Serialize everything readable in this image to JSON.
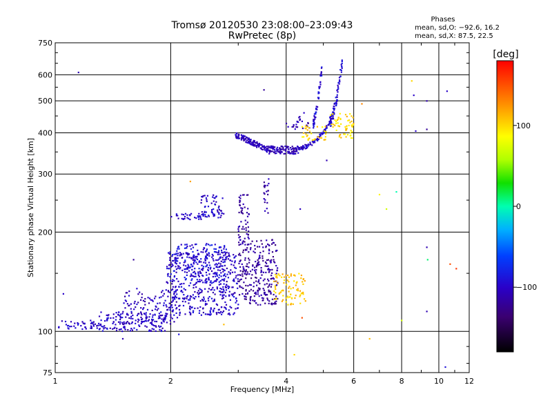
{
  "chart_data": {
    "type": "scatter",
    "title": "Tromsø 20120530 23:08:00–23:09:43",
    "subtitle": "RwPretec (8p)",
    "xlabel": "Frequency [MHz]",
    "ylabel": "Stationary phase Virtual Height [km]",
    "x_scale": "log",
    "y_scale": "log",
    "xlim": [
      1,
      12
    ],
    "ylim": [
      75,
      750
    ],
    "x_ticks": [
      1,
      2,
      4,
      6,
      8,
      10,
      12
    ],
    "x_tick_labels": [
      "1",
      "2",
      "4",
      "6",
      "8",
      "10",
      "12"
    ],
    "y_ticks": [
      75,
      100,
      200,
      300,
      400,
      500,
      600,
      750
    ],
    "y_tick_labels": [
      "75",
      "100",
      "200",
      "300",
      "400",
      "500",
      "600",
      "750"
    ],
    "grid": true,
    "phases_box": {
      "heading": "Phases",
      "line_o": "mean, sd,O: −92.6, 16.2",
      "line_x": "mean, sd,X:  87.5, 22.5"
    },
    "colorbar": {
      "label": "[deg]",
      "range": [
        -180,
        180
      ],
      "ticks": [
        100,
        0,
        -100
      ],
      "tick_labels": [
        "100",
        "0",
        "−100"
      ]
    },
    "series": [
      {
        "traces": [
          {
            "trace": "sparse-low",
            "f": [
              1.02,
              1.3
            ],
            "h": [
              101,
              108
            ],
            "phase": -100,
            "n": 45
          },
          {
            "trace": "bottom-band",
            "f": [
              1.3,
              1.95
            ],
            "h": [
              100,
              115
            ],
            "phase": -100,
            "n": 170
          },
          {
            "trace": "mid-cloud",
            "f": [
              1.5,
              2.1
            ],
            "h": [
              105,
              135
            ],
            "phase": -105,
            "n": 110
          },
          {
            "trace": "E-region-cloud",
            "f": [
              1.95,
              3.0
            ],
            "h": [
              112,
              175
            ],
            "phase": -100,
            "n": 500
          },
          {
            "trace": "E-region-upper",
            "f": [
              2.0,
              2.8
            ],
            "h": [
              140,
              185
            ],
            "phase": -90,
            "n": 140
          },
          {
            "trace": "spread-F-cluster",
            "f": [
              2.0,
              2.5
            ],
            "h": [
              218,
              228
            ],
            "phase": -100,
            "n": 35
          },
          {
            "trace": "spread-F-cluster-2",
            "f": [
              2.4,
              2.75
            ],
            "h": [
              220,
              260
            ],
            "phase": -100,
            "n": 60
          },
          {
            "trace": "purple-column",
            "f": [
              3.0,
              3.2
            ],
            "h": [
              125,
              260
            ],
            "phase": -120,
            "n": 130
          },
          {
            "trace": "purple-cloud",
            "f": [
              3.2,
              3.8
            ],
            "h": [
              120,
              190
            ],
            "phase": -118,
            "n": 200
          },
          {
            "trace": "purple-tail",
            "f": [
              3.5,
              3.6
            ],
            "h": [
              225,
              285
            ],
            "phase": -115,
            "n": 20
          },
          {
            "trace": "F-trace-low",
            "f": [
              2.95,
              3.6
            ],
            "h": [
              355,
              395
            ],
            "phase": -105,
            "n": 130
          },
          {
            "trace": "F-trace-mid",
            "f": [
              3.6,
              4.3
            ],
            "h": [
              345,
              365
            ],
            "phase": -110,
            "n": 110
          },
          {
            "trace": "F-trace-up",
            "f": [
              4.3,
              5.2
            ],
            "h": [
              360,
              430
            ],
            "phase": -100,
            "n": 90
          },
          {
            "trace": "F-cusp-1",
            "f": [
              4.7,
              4.95
            ],
            "h": [
              430,
              620
            ],
            "phase": -95,
            "n": 50
          },
          {
            "trace": "F-cusp-2",
            "f": [
              5.2,
              5.6
            ],
            "h": [
              430,
              660
            ],
            "phase": -95,
            "n": 80
          },
          {
            "trace": "F-low-left",
            "f": [
              4.0,
              4.6
            ],
            "h": [
              410,
              450
            ],
            "phase": -110,
            "n": 25
          }
        ]
      },
      {
        "traces": [
          {
            "trace": "X-E-region",
            "f": [
              3.7,
              4.5
            ],
            "h": [
              120,
              150
            ],
            "phase": 105,
            "n": 90
          },
          {
            "trace": "X-F-region",
            "f": [
              4.4,
              5.1
            ],
            "h": [
              380,
              420
            ],
            "phase": 100,
            "n": 35
          },
          {
            "trace": "X-F-cusp",
            "f": [
              5.2,
              6.0
            ],
            "h": [
              385,
              460
            ],
            "phase": 100,
            "n": 60
          }
        ]
      }
    ],
    "scattered_points": [
      {
        "f": 1.15,
        "h": 610,
        "phase": -110
      },
      {
        "f": 1.05,
        "h": 130,
        "phase": -100
      },
      {
        "f": 1.6,
        "h": 165,
        "phase": -120
      },
      {
        "f": 2.1,
        "h": 98,
        "phase": -90
      },
      {
        "f": 2.25,
        "h": 285,
        "phase": 120
      },
      {
        "f": 3.5,
        "h": 540,
        "phase": -120
      },
      {
        "f": 4.35,
        "h": 235,
        "phase": -105
      },
      {
        "f": 4.2,
        "h": 85,
        "phase": 100
      },
      {
        "f": 4.4,
        "h": 110,
        "phase": 150
      },
      {
        "f": 5.1,
        "h": 330,
        "phase": -110
      },
      {
        "f": 6.3,
        "h": 490,
        "phase": 130
      },
      {
        "f": 6.6,
        "h": 95,
        "phase": 110
      },
      {
        "f": 7.0,
        "h": 260,
        "phase": 90
      },
      {
        "f": 7.3,
        "h": 235,
        "phase": 70
      },
      {
        "f": 7.75,
        "h": 265,
        "phase": 0
      },
      {
        "f": 8.0,
        "h": 108,
        "phase": 70
      },
      {
        "f": 8.5,
        "h": 575,
        "phase": 100
      },
      {
        "f": 8.6,
        "h": 520,
        "phase": -100
      },
      {
        "f": 8.7,
        "h": 405,
        "phase": -100
      },
      {
        "f": 9.3,
        "h": 500,
        "phase": -110
      },
      {
        "f": 9.3,
        "h": 410,
        "phase": -120
      },
      {
        "f": 9.3,
        "h": 180,
        "phase": -110
      },
      {
        "f": 9.35,
        "h": 165,
        "phase": 10
      },
      {
        "f": 9.3,
        "h": 115,
        "phase": -110
      },
      {
        "f": 10.5,
        "h": 535,
        "phase": -100
      },
      {
        "f": 10.7,
        "h": 160,
        "phase": 150
      },
      {
        "f": 11.1,
        "h": 155,
        "phase": 160
      },
      {
        "f": 10.4,
        "h": 78,
        "phase": -90
      },
      {
        "f": 4.45,
        "h": 460,
        "phase": -100
      },
      {
        "f": 3.6,
        "h": 290,
        "phase": -100
      },
      {
        "f": 1.5,
        "h": 95,
        "phase": -110
      },
      {
        "f": 2.75,
        "h": 105,
        "phase": 110
      }
    ]
  }
}
